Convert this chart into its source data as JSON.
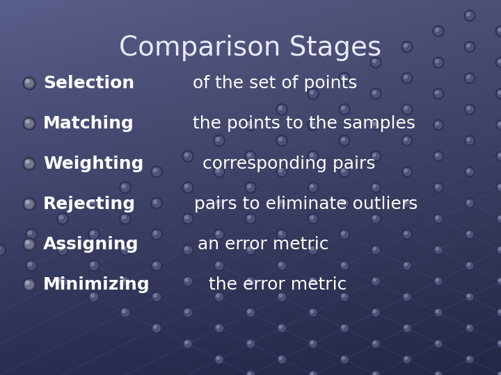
{
  "title": "Comparison Stages",
  "title_color": "#e8e8f8",
  "title_fontsize": 28,
  "bg_color_top": "#5a5e8a",
  "bg_color_bottom": "#2a2d50",
  "bullet_items": [
    {
      "bold": "Selection",
      "rest": " of the set of points"
    },
    {
      "bold": "Matching",
      "rest": " the points to the samples"
    },
    {
      "bold": "Weighting",
      "rest": " corresponding pairs"
    },
    {
      "bold": "Rejecting",
      "rest": " pairs to eliminate outliers"
    },
    {
      "bold": "Assigning",
      "rest": " an error metric"
    },
    {
      "bold": "Minimizing",
      "rest": " the error metric"
    }
  ],
  "text_color": "#ffffff",
  "text_fontsize": 18,
  "grid_color": "#4a4e78",
  "node_color_dark": "#3a3d60",
  "node_color_light": "#6a6e98"
}
